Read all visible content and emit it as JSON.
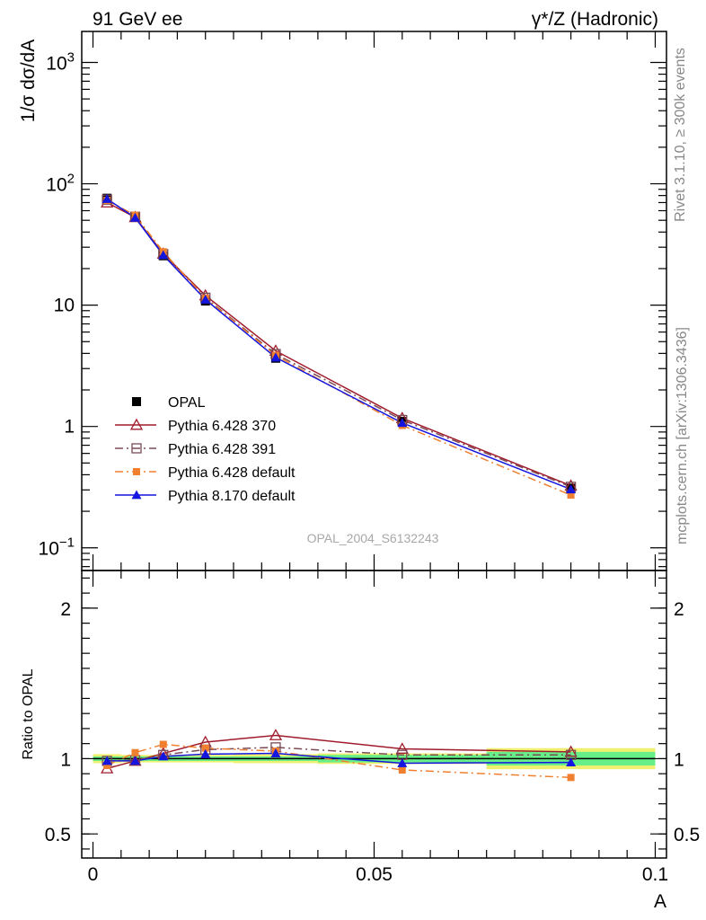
{
  "header": {
    "left": "91 GeV ee",
    "right": "γ*/Z (Hadronic)"
  },
  "side": {
    "rivet": "Rivet 3.1.10, ≥ 300k events",
    "mcplots": "mcplots.cern.ch [arXiv:1306.3436]"
  },
  "colors": {
    "OPAL": "#000000",
    "Pythia 6.428 370": "#a01c2c",
    "Pythia 6.428 391": "#7a4a55",
    "Pythia 6.428 default": "#f08030",
    "Pythia 8.170 default": "#1515e0",
    "band_inner": "#66ee88",
    "band_outer": "#f0f070"
  },
  "chart_data": [
    {
      "type": "line",
      "panel": "main",
      "ylabel": "1/σ dσ/dA",
      "xlabel": "",
      "watermark": "OPAL_2004_S6132243",
      "yscale": "log",
      "xlim": [
        -0.002,
        0.102
      ],
      "ylim": [
        0.065,
        1800
      ],
      "y_ticks": [
        {
          "value": 0.1,
          "base": "10",
          "exp": "−1"
        },
        {
          "value": 1,
          "label": "1"
        },
        {
          "value": 10,
          "label": "10"
        },
        {
          "value": 100,
          "base": "10",
          "exp": "2"
        },
        {
          "value": 1000,
          "base": "10",
          "exp": "3"
        }
      ],
      "x": [
        0.0025,
        0.0075,
        0.0125,
        0.02,
        0.0325,
        0.055,
        0.085
      ],
      "series": [
        {
          "name": "OPAL",
          "marker": "filled-square",
          "values": [
            76,
            53,
            25.5,
            10.8,
            3.65,
            1.1,
            0.31
          ]
        },
        {
          "name": "Pythia 6.428 370",
          "marker": "open-triangle",
          "line": "solid",
          "values": [
            70,
            53,
            26.5,
            12.0,
            4.2,
            1.17,
            0.325
          ]
        },
        {
          "name": "Pythia 6.428 391",
          "marker": "open-square",
          "line": "dashdot",
          "values": [
            74,
            53.5,
            26.3,
            11.5,
            3.95,
            1.13,
            0.318
          ]
        },
        {
          "name": "Pythia 6.428 default",
          "marker": "filled-square-small",
          "line": "dashdot",
          "values": [
            73,
            55,
            27.5,
            11.4,
            3.85,
            1.02,
            0.272
          ]
        },
        {
          "name": "Pythia 8.170 default",
          "marker": "filled-triangle",
          "line": "solid",
          "values": [
            75,
            52.5,
            25.8,
            11.1,
            3.7,
            1.07,
            0.303
          ]
        }
      ]
    },
    {
      "type": "line",
      "panel": "ratio",
      "ylabel": "Ratio to OPAL",
      "xlabel": "A",
      "xlim": [
        -0.002,
        0.102
      ],
      "ylim": [
        0.34,
        2.25
      ],
      "y_ticks": [
        {
          "value": 0.5,
          "label": "0.5"
        },
        {
          "value": 1,
          "label": "1"
        },
        {
          "value": 2,
          "label": "2"
        }
      ],
      "x_ticks": [
        {
          "value": 0,
          "label": "0"
        },
        {
          "value": 0.05,
          "label": "0.05"
        },
        {
          "value": 0.1,
          "label": "0.1"
        }
      ],
      "bands": [
        {
          "x": [
            0.0,
            0.005
          ],
          "inner": [
            0.985,
            1.015
          ],
          "outer": [
            0.97,
            1.03
          ]
        },
        {
          "x": [
            0.005,
            0.01
          ],
          "inner": [
            0.985,
            1.015
          ],
          "outer": [
            0.975,
            1.025
          ]
        },
        {
          "x": [
            0.01,
            0.015
          ],
          "inner": [
            0.985,
            1.015
          ],
          "outer": [
            0.975,
            1.025
          ]
        },
        {
          "x": [
            0.015,
            0.025
          ],
          "inner": [
            0.985,
            1.015
          ],
          "outer": [
            0.975,
            1.025
          ]
        },
        {
          "x": [
            0.025,
            0.04
          ],
          "inner": [
            0.985,
            1.015
          ],
          "outer": [
            0.97,
            1.03
          ]
        },
        {
          "x": [
            0.04,
            0.07
          ],
          "inner": [
            0.975,
            1.025
          ],
          "outer": [
            0.965,
            1.035
          ]
        },
        {
          "x": [
            0.07,
            0.1
          ],
          "inner": [
            0.955,
            1.045
          ],
          "outer": [
            0.93,
            1.07
          ]
        }
      ],
      "x": [
        0.0025,
        0.0075,
        0.0125,
        0.02,
        0.0325,
        0.055,
        0.085
      ],
      "series": [
        {
          "name": "OPAL",
          "marker": "none",
          "values": [
            1,
            1,
            1,
            1,
            1,
            1,
            1
          ]
        },
        {
          "name": "Pythia 6.428 370",
          "marker": "open-triangle",
          "line": "solid",
          "values": [
            0.935,
            0.985,
            1.035,
            1.11,
            1.155,
            1.065,
            1.045
          ]
        },
        {
          "name": "Pythia 6.428 391",
          "marker": "open-square",
          "line": "dashdot",
          "values": [
            0.985,
            0.99,
            1.025,
            1.06,
            1.075,
            1.025,
            1.025
          ]
        },
        {
          "name": "Pythia 6.428 default",
          "marker": "filled-square-small",
          "line": "dashdot",
          "values": [
            0.955,
            1.04,
            1.095,
            1.07,
            1.05,
            0.925,
            0.875
          ]
        },
        {
          "name": "Pythia 8.170 default",
          "marker": "filled-triangle",
          "line": "solid",
          "values": [
            0.985,
            0.985,
            1.015,
            1.03,
            1.035,
            0.97,
            0.975
          ]
        }
      ]
    }
  ]
}
